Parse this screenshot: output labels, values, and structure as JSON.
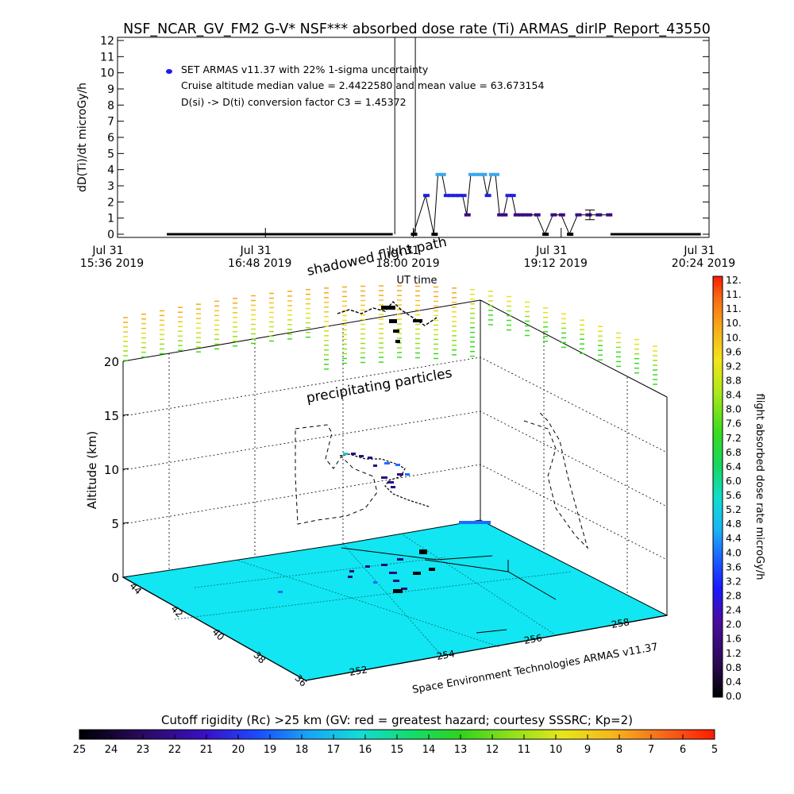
{
  "chart_data": [
    {
      "type": "scatter",
      "title": "NSF_NCAR_GV_FM2 G-V* NSF*** absorbed dose rate (Ti) ARMAS_dirIP_Report_43550",
      "xlabel": "UT time",
      "ylabel": "dD(Ti)/dt microGy/h",
      "ylim": [
        0,
        12
      ],
      "yticks": [
        "0",
        "1",
        "2",
        "3",
        "4",
        "5",
        "6",
        "7",
        "8",
        "9",
        "10",
        "11",
        "12"
      ],
      "xticks": [
        {
          "line1": "Jul 31",
          "line2": "15:36 2019"
        },
        {
          "line1": "Jul 31",
          "line2": "16:48 2019"
        },
        {
          "line1": "Jul 31",
          "line2": "18:00 2019"
        },
        {
          "line1": "Jul 31",
          "line2": "19:12 2019"
        },
        {
          "line1": "Jul 31",
          "line2": "20:24 2019"
        }
      ],
      "xrange_min": [
        936,
        1224
      ],
      "annotations": [
        "SET ARMAS v11.37 with 22% 1-sigma uncertainty",
        "Cruise altitude median value = 2.4422580 and mean value = 63.673154",
        "D(si) -> D(ti) conversion factor C3 = 1.45372"
      ],
      "series": [
        {
          "x_min": [
            1080,
            1086,
            1090,
            1092,
            1094,
            1096,
            1098,
            1100,
            1102,
            1104,
            1106,
            1108,
            1110,
            1112,
            1114,
            1116,
            1118,
            1120,
            1122,
            1124,
            1126,
            1128,
            1130,
            1132,
            1134,
            1136,
            1140,
            1144,
            1148,
            1152,
            1156,
            1160,
            1165,
            1170,
            1175
          ],
          "y": [
            0,
            2.4,
            0,
            3.7,
            3.7,
            2.4,
            2.4,
            2.4,
            2.4,
            2.4,
            1.2,
            3.7,
            3.7,
            3.7,
            3.7,
            2.4,
            3.7,
            3.7,
            1.2,
            1.2,
            2.4,
            2.4,
            1.2,
            1.2,
            1.2,
            1.2,
            1.2,
            0,
            1.2,
            1.2,
            0,
            1.2,
            1.2,
            1.2,
            1.2
          ]
        }
      ],
      "spike_lines_min": [
        1071,
        1081
      ],
      "baseline_zero_min": [
        [
          960,
          1070
        ],
        [
          1176,
          1220
        ]
      ],
      "error_bar": {
        "x_min": 1166,
        "y": 1.2,
        "err": 0.3
      }
    },
    {
      "type": "scatter3d",
      "zlabel": "Altitude (km)",
      "zlim": [
        0,
        20
      ],
      "zticks": [
        "0",
        "5",
        "10",
        "15",
        "20"
      ],
      "latitude_ticks": [
        "44",
        "42",
        "40",
        "38",
        "36"
      ],
      "longitude_ticks": [
        "252",
        "254",
        "256",
        "258"
      ],
      "annotations": [
        "shadowed flight path",
        "precipitating particles"
      ],
      "credit": "Space Environment Technologies ARMAS v11.37",
      "colorbar_label": "flight absorbed dose rate microGy/h",
      "colorbar_ticks": [
        "0.0",
        "0.4",
        "0.8",
        "1.2",
        "1.6",
        "2.0",
        "2.4",
        "2.8",
        "3.2",
        "3.6",
        "4.0",
        "4.4",
        "4.8",
        "5.2",
        "5.6",
        "6.0",
        "6.4",
        "6.8",
        "7.2",
        "7.6",
        "8.0",
        "8.4",
        "8.8",
        "9.2",
        "9.6",
        "10.",
        "10.",
        "11.",
        "11.",
        "12."
      ],
      "cutoff_label": "Cutoff rigidity (Rc) >25 km (GV: red = greatest hazard; courtesy SSSRC; Kp=2)",
      "cutoff_ticks": [
        "25",
        "24",
        "23",
        "22",
        "21",
        "20",
        "19",
        "18",
        "17",
        "16",
        "15",
        "14",
        "13",
        "12",
        "11",
        "10",
        "9",
        "8",
        "7",
        "6",
        "5"
      ],
      "colors": {
        "ground": "#11e6f2",
        "dose_low": "#000000",
        "dose_high": "#ff1a00"
      }
    }
  ]
}
